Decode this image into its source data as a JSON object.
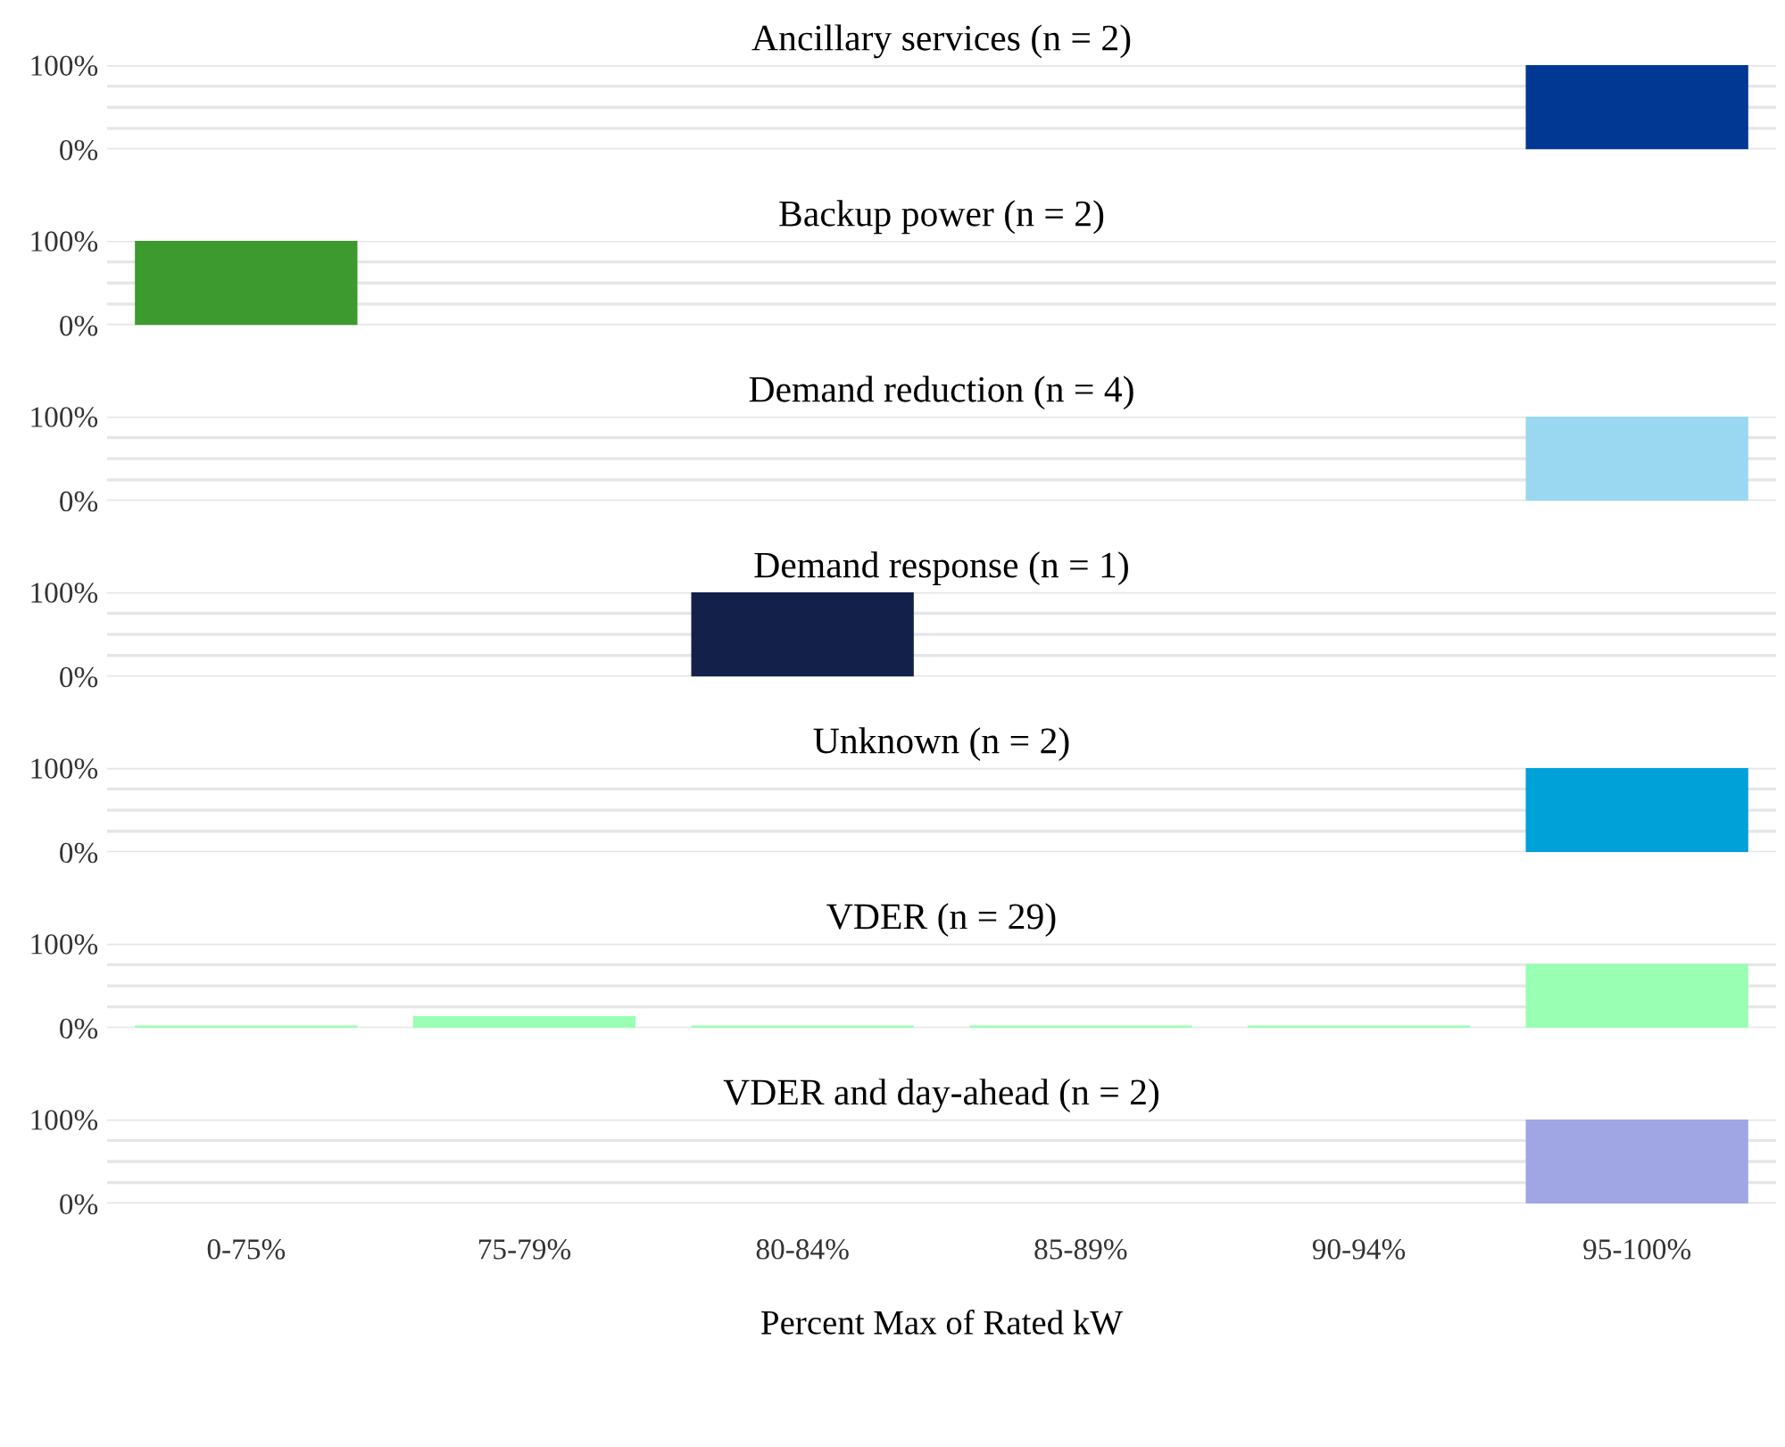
{
  "chart_data": [
    {
      "type": "bar",
      "title": "Ancillary services (n = 2)",
      "categories": [
        null,
        null,
        null,
        null,
        null,
        null
      ],
      "values": [
        0,
        0,
        0,
        0,
        0,
        100
      ],
      "color": "#003893",
      "ylim": [
        0,
        100
      ],
      "yticks": [
        {
          "value": 0,
          "label": "0%"
        },
        {
          "value": 25,
          "label": null
        },
        {
          "value": 50,
          "label": null
        },
        {
          "value": 75,
          "label": null
        },
        {
          "value": 100,
          "label": "100%"
        }
      ],
      "grid": "y",
      "tick_labels": "y"
    },
    {
      "type": "bar",
      "title": "Backup power (n = 2)",
      "categories": [
        null,
        null,
        null,
        null,
        null,
        null
      ],
      "values": [
        100,
        0,
        0,
        0,
        0,
        0
      ],
      "color": "#3c9a2f",
      "ylim": [
        0,
        100
      ],
      "yticks": [
        {
          "value": 0,
          "label": "0%"
        },
        {
          "value": 25,
          "label": null
        },
        {
          "value": 50,
          "label": null
        },
        {
          "value": 75,
          "label": null
        },
        {
          "value": 100,
          "label": "100%"
        }
      ],
      "grid": "y",
      "tick_labels": "y"
    },
    {
      "type": "bar",
      "title": "Demand reduction (n = 4)",
      "categories": [
        null,
        null,
        null,
        null,
        null,
        null
      ],
      "values": [
        0,
        0,
        0,
        0,
        0,
        100
      ],
      "color": "#99d8f0",
      "ylim": [
        0,
        100
      ],
      "yticks": [
        {
          "value": 0,
          "label": "0%"
        },
        {
          "value": 25,
          "label": null
        },
        {
          "value": 50,
          "label": null
        },
        {
          "value": 75,
          "label": null
        },
        {
          "value": 100,
          "label": "100%"
        }
      ],
      "grid": "y",
      "tick_labels": "y"
    },
    {
      "type": "bar",
      "title": "Demand response (n = 1)",
      "categories": [
        null,
        null,
        null,
        null,
        null,
        null
      ],
      "values": [
        0,
        0,
        100,
        0,
        0,
        0
      ],
      "color": "#13214a",
      "ylim": [
        0,
        100
      ],
      "yticks": [
        {
          "value": 0,
          "label": "0%"
        },
        {
          "value": 25,
          "label": null
        },
        {
          "value": 50,
          "label": null
        },
        {
          "value": 75,
          "label": null
        },
        {
          "value": 100,
          "label": "100%"
        }
      ],
      "grid": "y",
      "tick_labels": "y"
    },
    {
      "type": "bar",
      "title": "Unknown (n = 2)",
      "categories": [
        null,
        null,
        null,
        null,
        null,
        null
      ],
      "values": [
        0,
        0,
        0,
        0,
        0,
        100
      ],
      "color": "#00a0d8",
      "ylim": [
        0,
        100
      ],
      "yticks": [
        {
          "value": 0,
          "label": "0%"
        },
        {
          "value": 25,
          "label": null
        },
        {
          "value": 50,
          "label": null
        },
        {
          "value": 75,
          "label": null
        },
        {
          "value": 100,
          "label": "100%"
        }
      ],
      "grid": "y",
      "tick_labels": "y"
    },
    {
      "type": "bar",
      "title": "VDER (n = 29)",
      "categories": [
        null,
        null,
        null,
        null,
        null,
        null
      ],
      "values": [
        3,
        14,
        3,
        3,
        3,
        76
      ],
      "color": "#99ffb3",
      "ylim": [
        0,
        100
      ],
      "yticks": [
        {
          "value": 0,
          "label": "0%"
        },
        {
          "value": 25,
          "label": null
        },
        {
          "value": 50,
          "label": null
        },
        {
          "value": 75,
          "label": null
        },
        {
          "value": 100,
          "label": "100%"
        }
      ],
      "grid": "y",
      "tick_labels": "y"
    },
    {
      "type": "bar",
      "title": "VDER and day-ahead (n = 2)",
      "xlabel": "Percent Max of Rated kW",
      "categories": [
        "0-75%",
        "75-79%",
        "80-84%",
        "85-89%",
        "90-94%",
        "95-100%"
      ],
      "values": [
        0,
        0,
        0,
        0,
        0,
        100
      ],
      "color": "#a0a6e4",
      "ylim": [
        0,
        100
      ],
      "yticks": [
        {
          "value": 0,
          "label": "0%"
        },
        {
          "value": 25,
          "label": null
        },
        {
          "value": 50,
          "label": null
        },
        {
          "value": 75,
          "label": null
        },
        {
          "value": 100,
          "label": "100%"
        }
      ],
      "grid": "y"
    }
  ]
}
